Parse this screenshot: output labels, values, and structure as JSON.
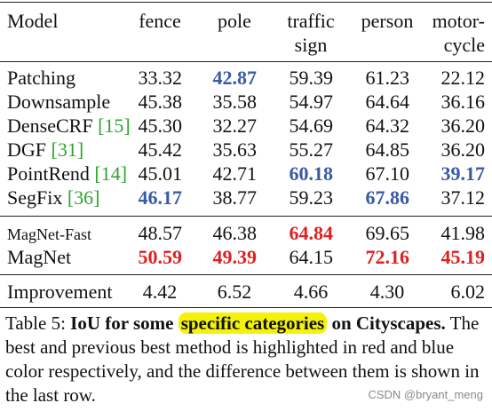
{
  "table": {
    "headers": {
      "model": "Model",
      "col1": "fence",
      "col2": "pole",
      "col3_line1": "traffic",
      "col3_line2": "sign",
      "col4": "person",
      "col5_line1": "motor-",
      "col5_line2": "cycle"
    },
    "rows": [
      {
        "name": "Patching",
        "cite": "",
        "v1": "33.32",
        "v2": "42.87",
        "v3": "59.39",
        "v4": "61.23",
        "v5": "22.12"
      },
      {
        "name": "Downsample",
        "cite": "",
        "v1": "45.38",
        "v2": "35.58",
        "v3": "54.97",
        "v4": "64.64",
        "v5": "36.16"
      },
      {
        "name": "DenseCRF",
        "cite": "[15]",
        "v1": "45.30",
        "v2": "32.27",
        "v3": "54.69",
        "v4": "64.32",
        "v5": "36.20"
      },
      {
        "name": "DGF",
        "cite": "[31]",
        "v1": "45.42",
        "v2": "35.63",
        "v3": "55.27",
        "v4": "64.85",
        "v5": "36.20"
      },
      {
        "name": "PointRend",
        "cite": "[14]",
        "v1": "45.01",
        "v2": "42.71",
        "v3": "60.18",
        "v4": "67.10",
        "v5": "39.17"
      },
      {
        "name": "SegFix",
        "cite": "[36]",
        "v1": "46.17",
        "v2": "38.77",
        "v3": "59.23",
        "v4": "67.86",
        "v5": "37.12"
      },
      {
        "name": "MagNet-Fast",
        "cite": "",
        "v1": "48.57",
        "v2": "46.38",
        "v3": "64.84",
        "v4": "69.65",
        "v5": "41.98"
      },
      {
        "name": "MagNet",
        "cite": "",
        "v1": "50.59",
        "v2": "49.39",
        "v3": "64.15",
        "v4": "72.16",
        "v5": "45.19"
      },
      {
        "name": "Improvement",
        "cite": "",
        "v1": "4.42",
        "v2": "6.52",
        "v3": "4.66",
        "v4": "4.30",
        "v5": "6.02"
      }
    ]
  },
  "caption": {
    "label": "Table 5:",
    "bold_part1": "IoU for some",
    "highlight": "specific categories",
    "bold_part2": "on Cityscapes.",
    "body": "The best and previous best method is highlighted in red and blue color respectively, and the difference between them is shown in the last row."
  },
  "watermark": "CSDN @bryant_meng",
  "colors": {
    "best": "#e02020",
    "second": "#3a5aa6",
    "citation": "#2ea32e",
    "highlight": "#f5f20a"
  }
}
